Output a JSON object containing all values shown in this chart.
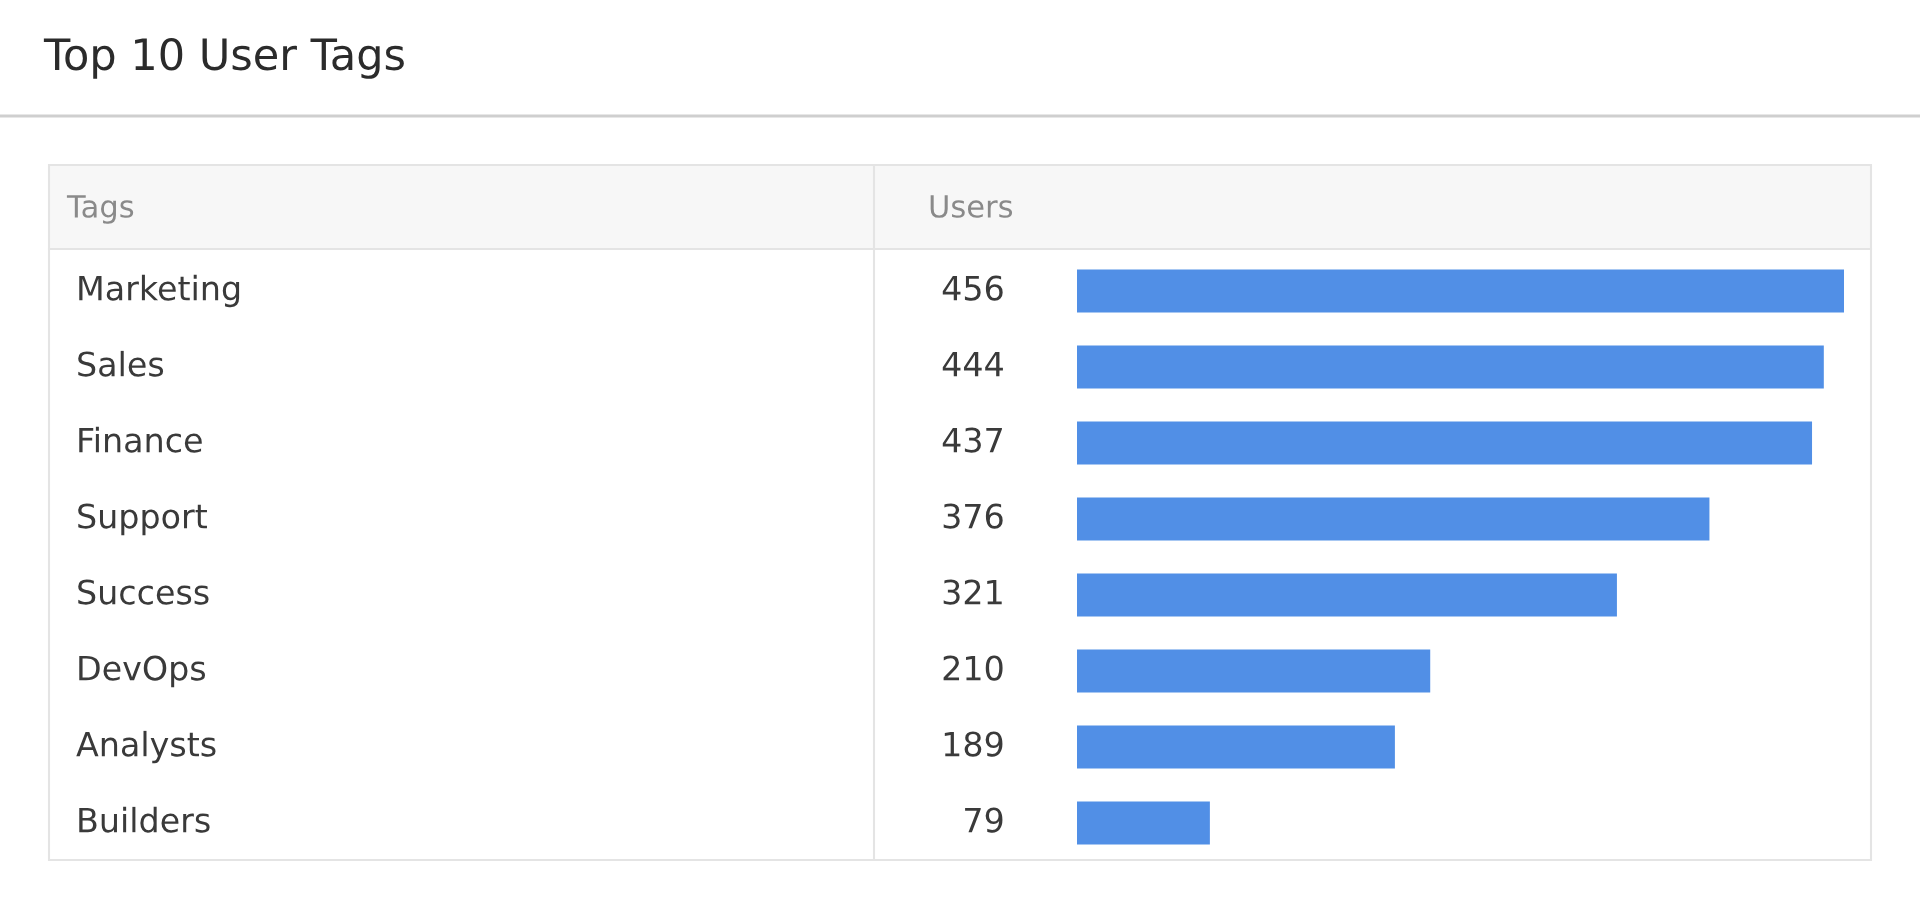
{
  "chart_data": {
    "type": "bar",
    "orientation": "horizontal",
    "title": "Top 10 User Tags",
    "ylabel": "Tags",
    "xlabel": "Users",
    "categories": [
      "Marketing",
      "Sales",
      "Finance",
      "Support",
      "Success",
      "DevOps",
      "Analysts",
      "Builders"
    ],
    "values": [
      456,
      444,
      437,
      376,
      321,
      210,
      189,
      79
    ],
    "color": "#518fe6",
    "xlim": [
      0,
      456
    ],
    "data_labels": true,
    "tick_labels": false
  }
}
